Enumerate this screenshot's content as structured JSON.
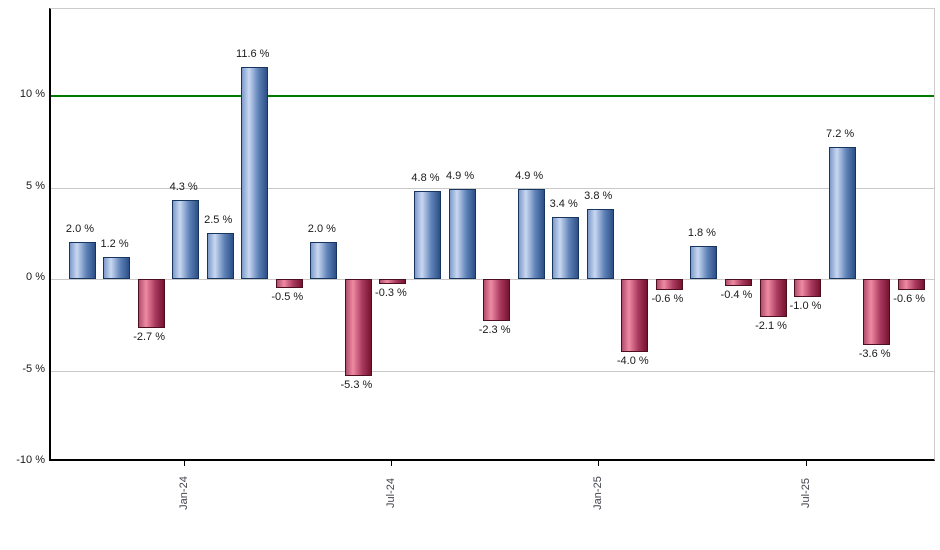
{
  "chart_data": {
    "type": "bar",
    "values": [
      2.0,
      1.2,
      -2.7,
      4.3,
      2.5,
      11.6,
      -0.5,
      2.0,
      -5.3,
      -0.3,
      4.8,
      4.9,
      -2.3,
      4.9,
      3.4,
      3.8,
      -4.0,
      -0.6,
      1.8,
      -0.4,
      -2.1,
      -1.0,
      7.2,
      -3.6,
      -0.6
    ],
    "bar_labels": [
      "2.0 %",
      "1.2 %",
      "-2.7 %",
      "4.3 %",
      "2.5 %",
      "11.6 %",
      "-0.5 %",
      "2.0 %",
      "-5.3 %",
      "-0.3 %",
      "4.8 %",
      "4.9 %",
      "-2.3 %",
      "4.9 %",
      "3.4 %",
      "3.8 %",
      "-4.0 %",
      "-0.6 %",
      "1.8 %",
      "-0.4 %",
      "-2.1 %",
      "-1.0 %",
      "7.2 %",
      "-3.6 %",
      "-0.6 %"
    ],
    "x_tick_labels": [
      "Jan-24",
      "Jul-24",
      "Jan-25",
      "Jul-25"
    ],
    "x_tick_bar_indices": [
      3,
      9,
      15,
      21
    ],
    "y_tick_labels": [
      "10 %",
      "5 %",
      "0 %",
      "-5 %",
      "-10 %"
    ],
    "y_tick_values": [
      10,
      5,
      0,
      -5,
      -10
    ],
    "ylim": [
      -10,
      14.8
    ],
    "grid": true,
    "legend": "none",
    "reference_line": {
      "value": 10,
      "color": "#007b00"
    },
    "colors": {
      "gridline": "#c9c9c9",
      "axis": "#000000",
      "value_label": "#1a1a1a",
      "x_tick_label": "#42454d",
      "positive_border": "#16365f",
      "positive_gradient": [
        "#7e9bca",
        "#c9d8f1",
        "#5f83b8",
        "#2d4f87"
      ],
      "negative_border": "#4d0e20",
      "negative_gradient": [
        "#b14e6c",
        "#ef8aa3",
        "#a93a5f",
        "#77132f"
      ]
    }
  }
}
